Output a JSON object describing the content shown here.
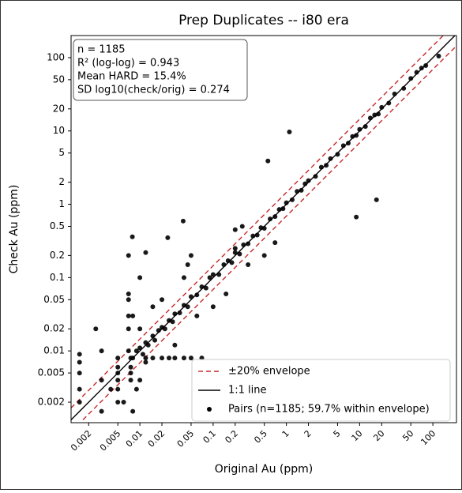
{
  "chart_data": {
    "type": "scatter",
    "title": "Prep Duplicates -- i80 era",
    "x_label": "Original Au (ppm)",
    "y_label": "Check Au (ppm)",
    "xscale": "log",
    "yscale": "log",
    "xlim": [
      0.00115,
      210
    ],
    "ylim": [
      0.00105,
      200
    ],
    "xticks": [
      0.002,
      0.005,
      0.01,
      0.02,
      0.05,
      0.1,
      0.2,
      0.5,
      1,
      2,
      5,
      10,
      20,
      50,
      100
    ],
    "yticks": [
      0.002,
      0.005,
      0.01,
      0.02,
      0.05,
      0.1,
      0.2,
      0.5,
      1,
      2,
      5,
      10,
      20,
      50,
      100
    ],
    "annotations": [
      "n = 1185",
      "R² (log-log) = 0.943",
      "Mean HARD = 15.4%",
      "SD log10(check/orig) = 0.274"
    ],
    "legend": "lower right",
    "series": [
      {
        "name": "±20% envelope",
        "type": "line",
        "dash": true,
        "color": "#c62828",
        "x": [
          0.00115,
          145
        ],
        "values": [
          0.00167,
          210
        ]
      },
      {
        "type": "line",
        "dash": true,
        "color": "#c62828",
        "x": [
          0.00167,
          210
        ],
        "values": [
          0.00115,
          145
        ]
      },
      {
        "name": "1:1 line",
        "type": "line",
        "dash": false,
        "color": "#000000",
        "x": [
          0.00115,
          200
        ],
        "values": [
          0.00115,
          200
        ]
      },
      {
        "name": "Pairs (n=1185; 59.7% within envelope)",
        "type": "scatter",
        "color": "#000000",
        "x": [
          0.008,
          0.009,
          0.01,
          0.011,
          0.012,
          0.013,
          0.015,
          0.016,
          0.018,
          0.02,
          0.022,
          0.025,
          0.028,
          0.03,
          0.035,
          0.04,
          0.045,
          0.05,
          0.06,
          0.07,
          0.08,
          0.09,
          0.1,
          0.12,
          0.14,
          0.16,
          0.18,
          0.2,
          0.23,
          0.26,
          0.3,
          0.35,
          0.4,
          0.45,
          0.5,
          0.6,
          0.7,
          0.8,
          0.9,
          1,
          1.2,
          1.4,
          1.6,
          1.8,
          2,
          2.5,
          3,
          3.5,
          4,
          5,
          6,
          7,
          8,
          9,
          10,
          12,
          14,
          16,
          18,
          20,
          25,
          30,
          40,
          50,
          60,
          70,
          80,
          120,
          0.02,
          0.03,
          0.05,
          0.04,
          0.06,
          0.1,
          0.15,
          0.2,
          0.3,
          0.25,
          0.5,
          0.7,
          0.01,
          0.015,
          0.012,
          0.008,
          0.56,
          1.1,
          9,
          17,
          0.039,
          0.0079,
          0.024,
          0.045,
          0.012,
          0.007,
          0.2,
          0.0015,
          0.0015,
          0.0015,
          0.0015,
          0.0015,
          0.005,
          0.005,
          0.005,
          0.005,
          0.005,
          0.005,
          0.007,
          0.007,
          0.007,
          0.007,
          0.007,
          0.0075,
          0.0075,
          0.0075,
          0.0075,
          0.012,
          0.015,
          0.02,
          0.025,
          0.03,
          0.04,
          0.05,
          0.07,
          0.003,
          0.003,
          0.004,
          0.006,
          0.008,
          0.0025,
          0.003,
          0.01,
          0.009,
          0.01
        ],
        "values": [
          0.008,
          0.01,
          0.011,
          0.009,
          0.013,
          0.012,
          0.016,
          0.014,
          0.019,
          0.021,
          0.02,
          0.026,
          0.025,
          0.032,
          0.033,
          0.042,
          0.04,
          0.055,
          0.058,
          0.075,
          0.072,
          0.1,
          0.11,
          0.11,
          0.15,
          0.17,
          0.16,
          0.22,
          0.21,
          0.28,
          0.29,
          0.37,
          0.38,
          0.48,
          0.47,
          0.63,
          0.68,
          0.85,
          0.87,
          1.05,
          1.15,
          1.5,
          1.55,
          1.9,
          2.1,
          2.4,
          3.2,
          3.4,
          4.2,
          4.8,
          6.3,
          6.8,
          8.4,
          8.7,
          10.5,
          11.5,
          15,
          16.5,
          17,
          21,
          24,
          32,
          38,
          52,
          63,
          72,
          78,
          105,
          0.05,
          0.012,
          0.2,
          0.1,
          0.03,
          0.04,
          0.06,
          0.45,
          0.15,
          0.5,
          0.2,
          0.3,
          0.02,
          0.04,
          0.007,
          0.03,
          3.9,
          9.7,
          0.67,
          1.15,
          0.59,
          0.36,
          0.35,
          0.15,
          0.22,
          0.2,
          0.25,
          0.002,
          0.003,
          0.005,
          0.007,
          0.009,
          0.002,
          0.003,
          0.004,
          0.005,
          0.006,
          0.008,
          0.01,
          0.02,
          0.03,
          0.05,
          0.06,
          0.004,
          0.005,
          0.006,
          0.008,
          0.008,
          0.008,
          0.008,
          0.008,
          0.008,
          0.008,
          0.008,
          0.008,
          0.0015,
          0.004,
          0.003,
          0.002,
          0.0015,
          0.02,
          0.01,
          0.004,
          0.003,
          0.1
        ]
      }
    ]
  }
}
